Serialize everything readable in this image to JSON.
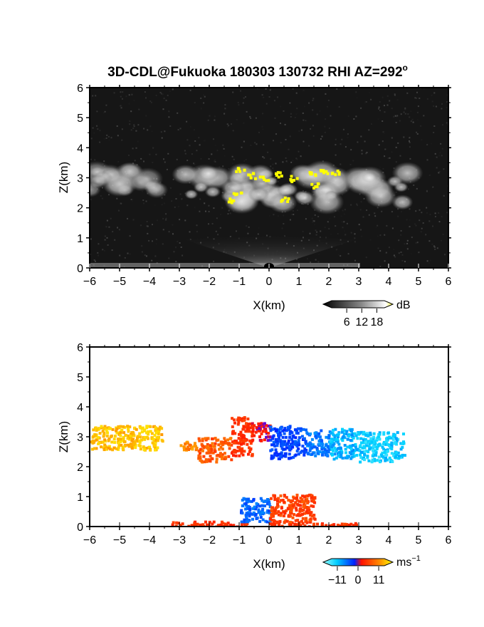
{
  "title": "3D-CDL@Fukuoka 180303 130732 RHI AZ=292",
  "title_superscript": "o",
  "chart_data": [
    {
      "type": "heatmap",
      "panel": "reflectivity",
      "xlabel": "X(km)",
      "ylabel": "Z(km)",
      "xlim": [
        -6,
        6
      ],
      "ylim": [
        0,
        6
      ],
      "x_ticks": [
        "-6",
        "-5",
        "-4",
        "-3",
        "-2",
        "-1",
        "0",
        "1",
        "2",
        "3",
        "4",
        "5",
        "6"
      ],
      "y_ticks": [
        "0",
        "1",
        "2",
        "3",
        "4",
        "5",
        "6"
      ],
      "background": "#151515",
      "cloud_regions": [
        {
          "x": [
            -6.0,
            -3.6
          ],
          "z": [
            2.4,
            3.5
          ],
          "intensity": "medium"
        },
        {
          "x": [
            -3.0,
            4.7
          ],
          "z": [
            1.9,
            3.6
          ],
          "intensity": "high"
        }
      ],
      "high_reflectivity_points": [
        {
          "x": -1.0,
          "z": 3.3
        },
        {
          "x": -0.6,
          "z": 3.1
        },
        {
          "x": -0.2,
          "z": 3.0
        },
        {
          "x": 0.3,
          "z": 3.15
        },
        {
          "x": 0.8,
          "z": 3.0
        },
        {
          "x": 1.4,
          "z": 3.2
        },
        {
          "x": 1.8,
          "z": 3.25
        },
        {
          "x": 2.2,
          "z": 3.2
        },
        {
          "x": -1.3,
          "z": 2.3
        },
        {
          "x": -1.1,
          "z": 2.5
        },
        {
          "x": 1.5,
          "z": 2.8
        },
        {
          "x": 0.5,
          "z": 2.3
        }
      ],
      "colorbar": {
        "unit": "dB",
        "ticks": [
          "6",
          "12",
          "18"
        ],
        "range": [
          0,
          21
        ],
        "colors": [
          "#000000",
          "#ffffff",
          "#ffff00"
        ]
      }
    },
    {
      "type": "heatmap",
      "panel": "doppler_velocity",
      "xlabel": "X(km)",
      "ylabel": "Z(km)",
      "xlim": [
        -6,
        6
      ],
      "ylim": [
        0,
        6
      ],
      "x_ticks": [
        "-6",
        "-5",
        "-4",
        "-3",
        "-2",
        "-1",
        "0",
        "1",
        "2",
        "3",
        "4",
        "5",
        "6"
      ],
      "y_ticks": [
        "0",
        "1",
        "2",
        "3",
        "4",
        "5",
        "6"
      ],
      "velocity_regions": [
        {
          "x": [
            -6.0,
            -3.6
          ],
          "z": [
            2.6,
            3.4
          ],
          "velocity": 9
        },
        {
          "x": [
            -3.0,
            -2.4
          ],
          "z": [
            2.6,
            2.9
          ],
          "velocity": 7
        },
        {
          "x": [
            -2.4,
            -1.3
          ],
          "z": [
            2.2,
            3.0
          ],
          "velocity": 5
        },
        {
          "x": [
            -1.3,
            -0.6
          ],
          "z": [
            2.4,
            3.7
          ],
          "velocity": 3
        },
        {
          "x": -0.6,
          "x_end": 0.0,
          "z": [
            2.9,
            3.5
          ],
          "velocity": 1
        },
        {
          "x": [
            0.0,
            1.2
          ],
          "z": [
            2.3,
            3.4
          ],
          "velocity": -5
        },
        {
          "x": [
            1.2,
            2.0
          ],
          "z": [
            2.4,
            3.3
          ],
          "velocity": -7
        },
        {
          "x": [
            2.0,
            3.0
          ],
          "z": [
            2.3,
            3.3
          ],
          "velocity": -9
        },
        {
          "x": [
            3.0,
            4.5
          ],
          "z": [
            2.2,
            3.2
          ],
          "velocity": -10
        },
        {
          "x": [
            -3.3,
            -0.7
          ],
          "z": [
            0.0,
            0.2
          ],
          "velocity": 3
        },
        {
          "x": [
            -1.0,
            0.0
          ],
          "z": [
            0.2,
            1.0
          ],
          "velocity": -6
        },
        {
          "x": [
            0.0,
            1.5
          ],
          "z": [
            0.1,
            1.1
          ],
          "velocity": 4
        },
        {
          "x": [
            0.0,
            2.9
          ],
          "z": [
            0.0,
            0.15
          ],
          "velocity": 3
        }
      ],
      "colorbar": {
        "unit": "ms",
        "unit_superscript": "−1",
        "ticks": [
          "−11",
          "0",
          "11"
        ],
        "range": [
          -14,
          14
        ],
        "colors": [
          "#99ffff",
          "#00ccff",
          "#0000ff",
          "#ff0000",
          "#ff8800",
          "#ffff00"
        ]
      }
    }
  ]
}
